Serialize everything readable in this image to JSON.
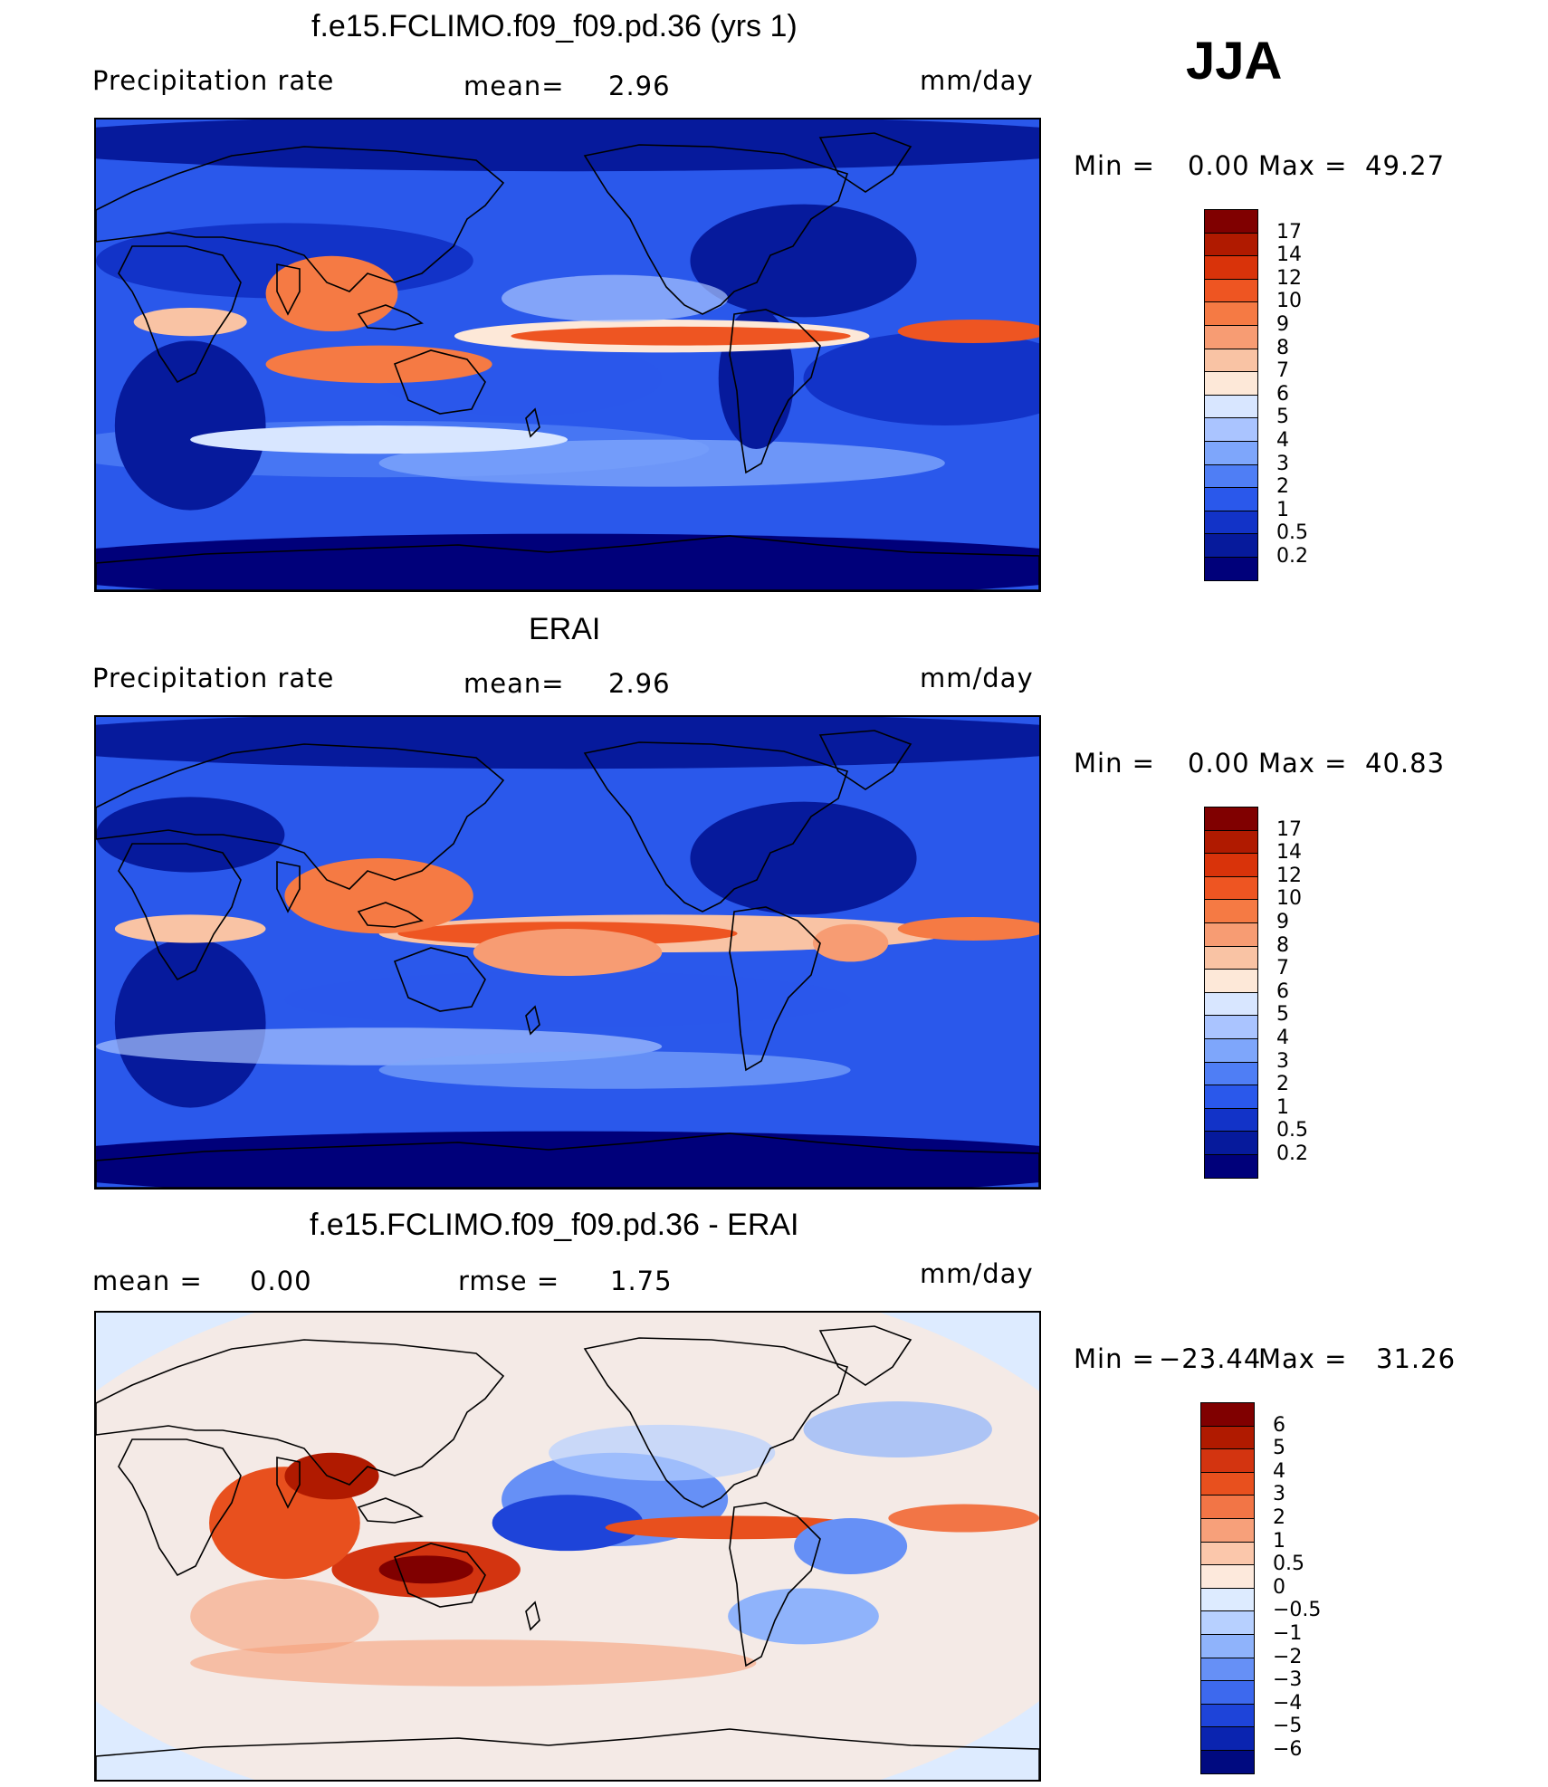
{
  "season_label": "JJA",
  "panels": [
    {
      "title": "f.e15.FCLIMO.f09_f09.pd.36 (yrs 1)",
      "left_label": "Precipitation  rate",
      "center_label": "mean=",
      "center_value": "2.96",
      "right_label": "mm/day",
      "minmax": {
        "min_label": "Min  =",
        "min_value": "0.00",
        "max_label": "Max  =",
        "max_value": "49.27"
      },
      "colorbar": {
        "levels": [
          "17",
          "14",
          "12",
          "10",
          "9",
          "8",
          "7",
          "6",
          "5",
          "4",
          "3",
          "2",
          "1",
          "0.5",
          "0.2"
        ],
        "colors": [
          "#800000",
          "#b01a00",
          "#d9330a",
          "#ee5522",
          "#f57a44",
          "#f79c73",
          "#f9c3a4",
          "#fde8d8",
          "#d8e6ff",
          "#aac4ff",
          "#7ea6fb",
          "#4f7ef5",
          "#2a58eb",
          "#1233c8",
          "#061a9c",
          "#00007a"
        ]
      }
    },
    {
      "title": "ERAI",
      "left_label": "Precipitation  rate",
      "center_label": "mean=",
      "center_value": "2.96",
      "right_label": "mm/day",
      "minmax": {
        "min_label": "Min  =",
        "min_value": "0.00",
        "max_label": "Max  =",
        "max_value": "40.83"
      },
      "colorbar": {
        "levels": [
          "17",
          "14",
          "12",
          "10",
          "9",
          "8",
          "7",
          "6",
          "5",
          "4",
          "3",
          "2",
          "1",
          "0.5",
          "0.2"
        ],
        "colors": [
          "#800000",
          "#b01a00",
          "#d9330a",
          "#ee5522",
          "#f57a44",
          "#f79c73",
          "#f9c3a4",
          "#fde8d8",
          "#d8e6ff",
          "#aac4ff",
          "#7ea6fb",
          "#4f7ef5",
          "#2a58eb",
          "#1233c8",
          "#061a9c",
          "#00007a"
        ]
      }
    },
    {
      "title": "f.e15.FCLIMO.f09_f09.pd.36 - ERAI",
      "left_label": "mean  =",
      "left_value": "0.00",
      "center_label": "rmse  =",
      "center_value": "1.75",
      "right_label": "mm/day",
      "minmax": {
        "min_label": "Min  =",
        "min_value": "−23.44",
        "max_label": "Max  =",
        "max_value": "31.26"
      },
      "colorbar": {
        "levels": [
          "6",
          "5",
          "4",
          "3",
          "2",
          "1",
          "0.5",
          "0",
          "−0.5",
          "−1",
          "−2",
          "−3",
          "−4",
          "−5",
          "−6"
        ],
        "colors": [
          "#800000",
          "#b01a00",
          "#d33410",
          "#e8501e",
          "#f27546",
          "#f7a07a",
          "#fbc7ab",
          "#fde9dc",
          "#ddebff",
          "#b7d0ff",
          "#8fb3fb",
          "#6690f6",
          "#3d69ee",
          "#1e44d9",
          "#0a24b0",
          "#000a80"
        ]
      }
    }
  ]
}
